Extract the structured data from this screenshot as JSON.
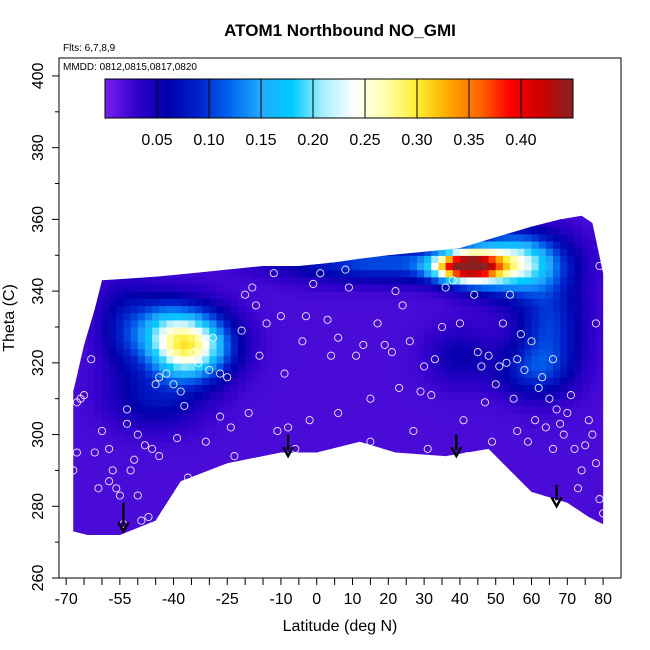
{
  "chart_data": {
    "type": "heatmap",
    "title": "ATOM1 Northbound NO_GMI",
    "annotations": {
      "flights": "Flts: 6,7,8,9",
      "dates": "MMDD: 0812,0815,0817,0820"
    },
    "xlabel": "Latitude (deg N)",
    "ylabel": "Theta (C)",
    "xlim": [
      -72,
      85
    ],
    "ylim": [
      260,
      405
    ],
    "x_tick_labels": [
      "-70",
      "-55",
      "-40",
      "-25",
      "-10",
      "0",
      "10",
      "20",
      "30",
      "40",
      "50",
      "60",
      "70",
      "80"
    ],
    "x_tick_values": [
      -70,
      -55,
      -40,
      -25,
      -10,
      0,
      10,
      20,
      30,
      40,
      50,
      60,
      70,
      80
    ],
    "x_minor_ticks": [
      -65,
      -60,
      -50,
      -45,
      -35,
      -30,
      -20,
      -15,
      -5,
      5,
      15,
      25,
      35,
      45,
      55,
      65,
      75
    ],
    "y_tick_labels": [
      "260",
      "280",
      "300",
      "320",
      "340",
      "360",
      "380",
      "400"
    ],
    "y_tick_values": [
      260,
      280,
      300,
      320,
      340,
      360,
      380,
      400
    ],
    "colorbar": {
      "range": [
        0.0,
        0.45
      ],
      "tick_labels": [
        "0.05",
        "0.10",
        "0.15",
        "0.20",
        "0.25",
        "0.30",
        "0.35",
        "0.40"
      ],
      "tick_values": [
        0.05,
        0.1,
        0.15,
        0.2,
        0.25,
        0.3,
        0.35,
        0.4
      ],
      "colors": [
        "#7722ee",
        "#3300cc",
        "#0000aa",
        "#0022cc",
        "#0066ee",
        "#22aaff",
        "#00ccff",
        "#aaeeff",
        "#ffffff",
        "#ffffaa",
        "#ffee33",
        "#ffaa00",
        "#ff6600",
        "#ff0000",
        "#cc0000",
        "#882222"
      ]
    },
    "domain_outline": [
      [
        -68,
        273
      ],
      [
        -68,
        312
      ],
      [
        -65,
        325
      ],
      [
        -62,
        335
      ],
      [
        -60,
        343
      ],
      [
        -45,
        344
      ],
      [
        -35,
        345
      ],
      [
        -25,
        346
      ],
      [
        -15,
        347
      ],
      [
        -5,
        347
      ],
      [
        5,
        348
      ],
      [
        12,
        349
      ],
      [
        20,
        350
      ],
      [
        30,
        351
      ],
      [
        40,
        352
      ],
      [
        50,
        355
      ],
      [
        60,
        358
      ],
      [
        68,
        360
      ],
      [
        74,
        361
      ],
      [
        77,
        359
      ],
      [
        80,
        345
      ],
      [
        80,
        275
      ],
      [
        76,
        277
      ],
      [
        70,
        281
      ],
      [
        60,
        284
      ],
      [
        48,
        296
      ],
      [
        36,
        294
      ],
      [
        22,
        295
      ],
      [
        12,
        298
      ],
      [
        0,
        295
      ],
      [
        -10,
        295
      ],
      [
        -25,
        292
      ],
      [
        -38,
        287
      ],
      [
        -45,
        276
      ],
      [
        -55,
        272
      ],
      [
        -64,
        272
      ],
      [
        -68,
        273
      ]
    ],
    "fields": {
      "base": 0.02,
      "blobs": [
        {
          "x": -36,
          "y": 325,
          "sx": 11,
          "sy": 9,
          "v": 0.27
        },
        {
          "x": -44,
          "y": 331,
          "sx": 8,
          "sy": 8,
          "v": 0.06
        },
        {
          "x": 42,
          "y": 347,
          "sx": 9,
          "sy": 4,
          "v": 0.4
        },
        {
          "x": 55,
          "y": 348,
          "sx": 13,
          "sy": 8,
          "v": 0.2
        },
        {
          "x": 18,
          "y": 348,
          "sx": 26,
          "sy": 5,
          "v": 0.09
        },
        {
          "x": 65,
          "y": 330,
          "sx": 9,
          "sy": 14,
          "v": 0.08
        },
        {
          "x": -54,
          "y": 330,
          "sx": 7,
          "sy": 12,
          "v": 0.05
        },
        {
          "x": -45,
          "y": 310,
          "sx": 12,
          "sy": 8,
          "v": 0.05
        },
        {
          "x": 60,
          "y": 318,
          "sx": 10,
          "sy": 7,
          "v": 0.06
        },
        {
          "x": 40,
          "y": 322,
          "sx": 9,
          "sy": 8,
          "v": 0.035
        }
      ]
    },
    "samples": [
      [
        -68,
        290
      ],
      [
        -67,
        295
      ],
      [
        -67,
        309
      ],
      [
        -66,
        310
      ],
      [
        -65,
        311
      ],
      [
        -63,
        321
      ],
      [
        -62,
        295
      ],
      [
        -60,
        301
      ],
      [
        -58,
        296
      ],
      [
        -57,
        290
      ],
      [
        -55,
        283
      ],
      [
        -54,
        275
      ],
      [
        -53,
        303
      ],
      [
        -53,
        307
      ],
      [
        -52,
        290
      ],
      [
        -51,
        293
      ],
      [
        -50,
        283
      ],
      [
        -49,
        276
      ],
      [
        -48,
        297
      ],
      [
        -47,
        277
      ],
      [
        -46,
        296
      ],
      [
        -45,
        314
      ],
      [
        -44,
        316
      ],
      [
        -42,
        317
      ],
      [
        -40,
        314
      ],
      [
        -38,
        312
      ],
      [
        -37,
        308
      ],
      [
        -36,
        288
      ],
      [
        -34,
        323
      ],
      [
        -33,
        320
      ],
      [
        -30,
        318
      ],
      [
        -29,
        327
      ],
      [
        -27,
        317
      ],
      [
        -25,
        316
      ],
      [
        -24,
        302
      ],
      [
        -23,
        294
      ],
      [
        -21,
        329
      ],
      [
        -20,
        339
      ],
      [
        -18,
        341
      ],
      [
        -17,
        336
      ],
      [
        -16,
        322
      ],
      [
        -14,
        331
      ],
      [
        -12,
        345
      ],
      [
        -10,
        333
      ],
      [
        -9,
        317
      ],
      [
        -8,
        302
      ],
      [
        -6,
        296
      ],
      [
        -4,
        326
      ],
      [
        -3,
        333
      ],
      [
        -1,
        342
      ],
      [
        1,
        345
      ],
      [
        3,
        332
      ],
      [
        4,
        322
      ],
      [
        6,
        327
      ],
      [
        8,
        346
      ],
      [
        9,
        341
      ],
      [
        11,
        322
      ],
      [
        13,
        325
      ],
      [
        15,
        298
      ],
      [
        17,
        331
      ],
      [
        19,
        325
      ],
      [
        21,
        323
      ],
      [
        22,
        340
      ],
      [
        24,
        336
      ],
      [
        26,
        326
      ],
      [
        27,
        301
      ],
      [
        29,
        312
      ],
      [
        30,
        319
      ],
      [
        31,
        296
      ],
      [
        33,
        321
      ],
      [
        35,
        330
      ],
      [
        36,
        341
      ],
      [
        38,
        343
      ],
      [
        40,
        331
      ],
      [
        42,
        294
      ],
      [
        44,
        339
      ],
      [
        45,
        323
      ],
      [
        46,
        319
      ],
      [
        47,
        309
      ],
      [
        48,
        322
      ],
      [
        49,
        298
      ],
      [
        50,
        314
      ],
      [
        51,
        319
      ],
      [
        52,
        331
      ],
      [
        53,
        320
      ],
      [
        54,
        339
      ],
      [
        55,
        310
      ],
      [
        56,
        321
      ],
      [
        57,
        328
      ],
      [
        58,
        318
      ],
      [
        59,
        298
      ],
      [
        60,
        326
      ],
      [
        61,
        304
      ],
      [
        62,
        313
      ],
      [
        63,
        316
      ],
      [
        64,
        302
      ],
      [
        65,
        310
      ],
      [
        66,
        321
      ],
      [
        67,
        307
      ],
      [
        68,
        303
      ],
      [
        69,
        300
      ],
      [
        70,
        306
      ],
      [
        71,
        311
      ],
      [
        72,
        296
      ],
      [
        73,
        285
      ],
      [
        74,
        290
      ],
      [
        75,
        297
      ],
      [
        76,
        304
      ],
      [
        77,
        300
      ],
      [
        78,
        292
      ],
      [
        79,
        282
      ],
      [
        80,
        278
      ],
      [
        78,
        331
      ],
      [
        79,
        347
      ],
      [
        -58,
        287
      ],
      [
        -56,
        285
      ],
      [
        -61,
        285
      ],
      [
        -50,
        300
      ],
      [
        -44,
        294
      ],
      [
        -39,
        299
      ],
      [
        -31,
        298
      ],
      [
        -27,
        305
      ],
      [
        -19,
        306
      ],
      [
        -11,
        301
      ],
      [
        -2,
        304
      ],
      [
        6,
        306
      ],
      [
        15,
        310
      ],
      [
        23,
        313
      ],
      [
        32,
        311
      ],
      [
        41,
        304
      ],
      [
        56,
        301
      ],
      [
        66,
        296
      ]
    ],
    "arrows": [
      {
        "x": -54,
        "y_top": 281,
        "y_tip": 273
      },
      {
        "x": -8,
        "y_top": 300,
        "y_tip": 294
      },
      {
        "x": 39,
        "y_top": 300,
        "y_tip": 294
      },
      {
        "x": 67,
        "y_top": 286,
        "y_tip": 280
      }
    ]
  }
}
